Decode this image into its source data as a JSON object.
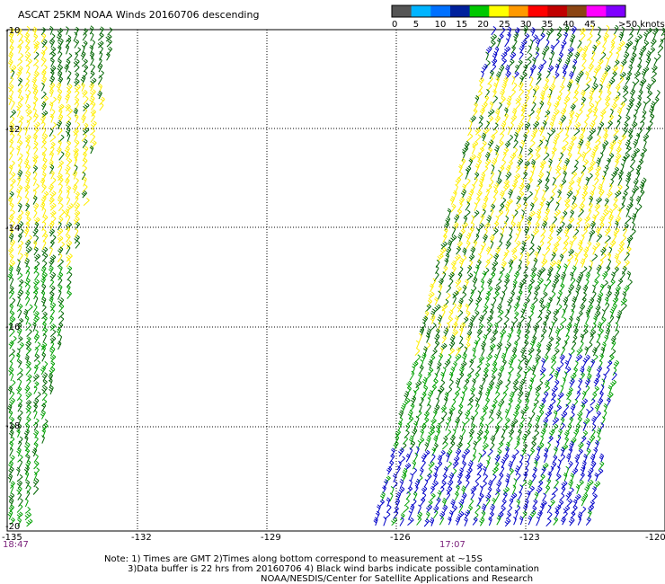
{
  "title": "ASCAT 25KM NOAA Winds 20160706 descending",
  "legend": {
    "unit_label": ">50 knots",
    "ticks": [
      "0",
      "5",
      "10",
      "15",
      "20",
      "25",
      "30",
      "35",
      "40",
      "45"
    ],
    "colors": [
      "#555555",
      "#00b4ff",
      "#0070ff",
      "#00209c",
      "#00c800",
      "#ffff00",
      "#ff9900",
      "#ff0000",
      "#c00000",
      "#8b4513",
      "#ff00ff",
      "#7f00ff"
    ]
  },
  "map": {
    "lon_labels": [
      "-135",
      "-132",
      "-129",
      "-126",
      "-123",
      "-120"
    ],
    "lat_labels": [
      "-10",
      "-12",
      "-14",
      "-16",
      "-18",
      "-20"
    ],
    "lon_range": [
      -135,
      -120
    ],
    "lat_range": [
      -20,
      -10
    ],
    "gridlines": "dotted"
  },
  "swath_times": [
    "18:47",
    "17:07"
  ],
  "notes": [
    "Note: 1) Times are GMT 2)Times along bottom correspond to measurement at ~15S",
    "3)Data buffer is 22 hrs from 20160706 4) Black wind barbs indicate possible contamination",
    "NOAA/NESDIS/Center for Satellite Applications and Research"
  ],
  "colors": {
    "yellow": "#ffee00",
    "green_dark": "#006400",
    "green": "#00a000",
    "blue": "#0000c8",
    "grid": "#000000",
    "time_label": "#7a1f7a"
  }
}
